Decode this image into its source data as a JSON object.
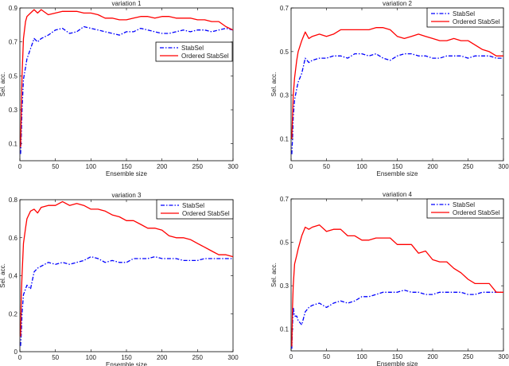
{
  "chart_data": [
    {
      "type": "line",
      "title": "variation 1",
      "xlabel": "Ensemble size",
      "ylabel": "Sel. acc.",
      "xlim": [
        0,
        300
      ],
      "ylim": [
        0,
        0.9
      ],
      "xticks": [
        0,
        50,
        100,
        150,
        200,
        250,
        300
      ],
      "yticks": [
        0.1,
        0.3,
        0.5,
        0.7,
        0.9
      ],
      "legend_placement": "right-upper-middle",
      "x": [
        1,
        2,
        3,
        5,
        8,
        10,
        15,
        20,
        25,
        30,
        40,
        50,
        60,
        70,
        80,
        90,
        100,
        110,
        120,
        130,
        140,
        150,
        160,
        170,
        180,
        190,
        200,
        210,
        220,
        230,
        240,
        250,
        260,
        270,
        280,
        290,
        300
      ],
      "series": [
        {
          "name": "StabSel",
          "color": "#0000ff",
          "style": "dashdot",
          "values": [
            0.04,
            0.15,
            0.3,
            0.48,
            0.55,
            0.6,
            0.66,
            0.72,
            0.7,
            0.72,
            0.74,
            0.77,
            0.78,
            0.75,
            0.76,
            0.79,
            0.78,
            0.77,
            0.76,
            0.75,
            0.74,
            0.76,
            0.76,
            0.78,
            0.77,
            0.76,
            0.75,
            0.75,
            0.76,
            0.77,
            0.76,
            0.77,
            0.77,
            0.76,
            0.77,
            0.78,
            0.77
          ]
        },
        {
          "name": "Ordered StabSel",
          "color": "#ff0000",
          "style": "solid",
          "values": [
            0.08,
            0.3,
            0.5,
            0.72,
            0.82,
            0.85,
            0.87,
            0.89,
            0.87,
            0.89,
            0.86,
            0.87,
            0.88,
            0.88,
            0.88,
            0.87,
            0.87,
            0.86,
            0.84,
            0.84,
            0.83,
            0.83,
            0.84,
            0.85,
            0.85,
            0.84,
            0.85,
            0.85,
            0.84,
            0.84,
            0.84,
            0.83,
            0.83,
            0.82,
            0.82,
            0.79,
            0.77
          ]
        }
      ]
    },
    {
      "type": "line",
      "title": "variation 2",
      "xlabel": "Ensemble size",
      "ylabel": "Sel. acc.",
      "xlim": [
        0,
        300
      ],
      "ylim": [
        0,
        0.7
      ],
      "xticks": [
        0,
        50,
        100,
        150,
        200,
        250,
        300
      ],
      "yticks": [
        0.1,
        0.3,
        0.5,
        0.7
      ],
      "legend_placement": "top-right",
      "x": [
        1,
        2,
        3,
        5,
        8,
        10,
        15,
        20,
        25,
        30,
        40,
        50,
        60,
        70,
        80,
        90,
        100,
        110,
        120,
        130,
        140,
        150,
        160,
        170,
        180,
        190,
        200,
        210,
        220,
        230,
        240,
        250,
        260,
        270,
        280,
        290,
        300
      ],
      "series": [
        {
          "name": "StabSel",
          "color": "#0000ff",
          "style": "dashdot",
          "values": [
            0.03,
            0.1,
            0.2,
            0.28,
            0.33,
            0.36,
            0.4,
            0.47,
            0.45,
            0.46,
            0.47,
            0.47,
            0.48,
            0.48,
            0.47,
            0.49,
            0.49,
            0.48,
            0.49,
            0.47,
            0.46,
            0.48,
            0.49,
            0.49,
            0.48,
            0.48,
            0.47,
            0.47,
            0.48,
            0.48,
            0.48,
            0.47,
            0.48,
            0.48,
            0.48,
            0.47,
            0.47
          ]
        },
        {
          "name": "Ordered StabSel",
          "color": "#ff0000",
          "style": "solid",
          "values": [
            0.1,
            0.2,
            0.3,
            0.38,
            0.46,
            0.5,
            0.55,
            0.59,
            0.56,
            0.57,
            0.58,
            0.57,
            0.58,
            0.6,
            0.6,
            0.6,
            0.6,
            0.6,
            0.61,
            0.61,
            0.6,
            0.57,
            0.56,
            0.57,
            0.58,
            0.57,
            0.56,
            0.55,
            0.55,
            0.56,
            0.55,
            0.55,
            0.53,
            0.51,
            0.5,
            0.48,
            0.48
          ]
        }
      ]
    },
    {
      "type": "line",
      "title": "variation 3",
      "xlabel": "Ensemble size",
      "ylabel": "Sel. acc.",
      "xlim": [
        0,
        300
      ],
      "ylim": [
        0,
        0.8
      ],
      "xticks": [
        0,
        50,
        100,
        150,
        200,
        250,
        300
      ],
      "yticks": [
        0,
        0.2,
        0.4,
        0.6,
        0.8
      ],
      "legend_placement": "top-right",
      "x": [
        1,
        2,
        3,
        5,
        8,
        10,
        15,
        20,
        25,
        30,
        40,
        50,
        60,
        70,
        80,
        90,
        100,
        110,
        120,
        130,
        140,
        150,
        160,
        170,
        180,
        190,
        200,
        210,
        220,
        230,
        240,
        250,
        260,
        270,
        280,
        290,
        300
      ],
      "series": [
        {
          "name": "StabSel",
          "color": "#0000ff",
          "style": "dashdot",
          "values": [
            0.03,
            0.1,
            0.2,
            0.3,
            0.33,
            0.35,
            0.33,
            0.42,
            0.44,
            0.45,
            0.47,
            0.46,
            0.47,
            0.46,
            0.47,
            0.48,
            0.5,
            0.49,
            0.47,
            0.48,
            0.47,
            0.47,
            0.49,
            0.49,
            0.49,
            0.5,
            0.49,
            0.49,
            0.49,
            0.48,
            0.48,
            0.48,
            0.49,
            0.49,
            0.49,
            0.49,
            0.49
          ]
        },
        {
          "name": "Ordered StabSel",
          "color": "#ff0000",
          "style": "solid",
          "values": [
            0.08,
            0.3,
            0.4,
            0.57,
            0.65,
            0.7,
            0.74,
            0.75,
            0.73,
            0.76,
            0.77,
            0.77,
            0.79,
            0.77,
            0.78,
            0.77,
            0.75,
            0.75,
            0.74,
            0.72,
            0.71,
            0.69,
            0.69,
            0.67,
            0.65,
            0.65,
            0.64,
            0.61,
            0.6,
            0.6,
            0.59,
            0.57,
            0.55,
            0.53,
            0.51,
            0.51,
            0.5
          ]
        }
      ]
    },
    {
      "type": "line",
      "title": "variation 4",
      "xlabel": "Ensemble size",
      "ylabel": "Sel. acc.",
      "xlim": [
        0,
        300
      ],
      "ylim": [
        0,
        0.7
      ],
      "xticks": [
        0,
        50,
        100,
        150,
        200,
        250,
        300
      ],
      "yticks": [
        0.1,
        0.3,
        0.5,
        0.7
      ],
      "legend_placement": "top-right",
      "x": [
        1,
        2,
        3,
        5,
        8,
        10,
        15,
        20,
        25,
        30,
        40,
        50,
        60,
        70,
        80,
        90,
        100,
        110,
        120,
        130,
        140,
        150,
        160,
        170,
        180,
        190,
        200,
        210,
        220,
        230,
        240,
        250,
        260,
        270,
        280,
        290,
        300
      ],
      "series": [
        {
          "name": "StabSel",
          "color": "#0000ff",
          "style": "dashdot",
          "values": [
            0.01,
            0.12,
            0.2,
            0.16,
            0.16,
            0.14,
            0.12,
            0.18,
            0.2,
            0.21,
            0.22,
            0.2,
            0.22,
            0.23,
            0.22,
            0.23,
            0.25,
            0.25,
            0.26,
            0.27,
            0.27,
            0.27,
            0.28,
            0.27,
            0.27,
            0.26,
            0.26,
            0.27,
            0.27,
            0.27,
            0.27,
            0.26,
            0.26,
            0.27,
            0.27,
            0.27,
            0.27
          ]
        },
        {
          "name": "Ordered StabSel",
          "color": "#ff0000",
          "style": "solid",
          "values": [
            0.02,
            0.2,
            0.3,
            0.4,
            0.44,
            0.47,
            0.53,
            0.57,
            0.56,
            0.57,
            0.58,
            0.55,
            0.56,
            0.56,
            0.53,
            0.53,
            0.51,
            0.51,
            0.52,
            0.52,
            0.52,
            0.49,
            0.49,
            0.49,
            0.45,
            0.46,
            0.42,
            0.41,
            0.41,
            0.38,
            0.36,
            0.33,
            0.31,
            0.31,
            0.31,
            0.27,
            0.27
          ]
        }
      ]
    }
  ]
}
